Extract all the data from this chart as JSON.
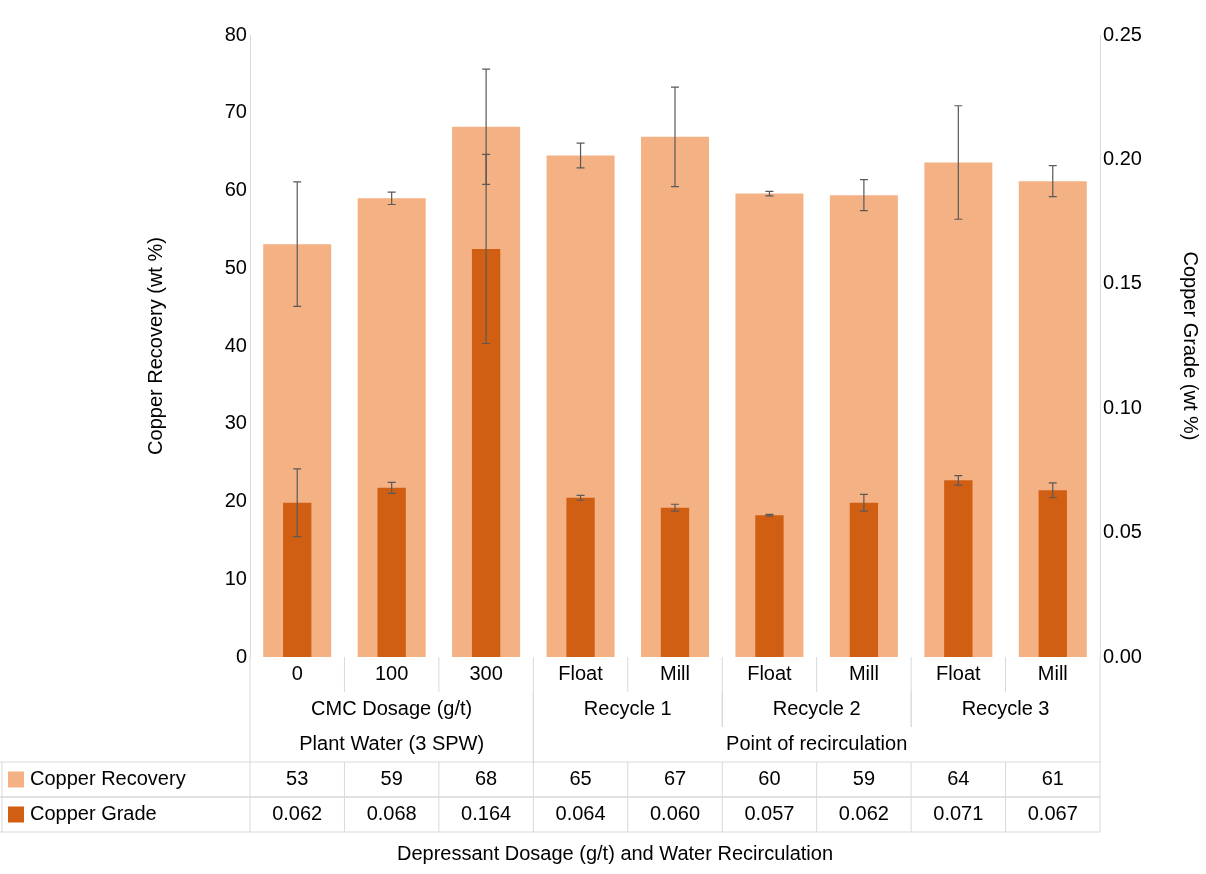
{
  "chart_data": {
    "type": "bar",
    "categories": [
      "0",
      "100",
      "300",
      "Float",
      "Mill",
      "Float",
      "Mill",
      "Float",
      "Mill"
    ],
    "series": [
      {
        "name": "Copper Recovery",
        "color": "#f4b183",
        "values": [
          53.1,
          59,
          68.2,
          64.5,
          66.9,
          59.6,
          59.4,
          63.6,
          61.2
        ],
        "errors": [
          8,
          0.8,
          7.4,
          1.6,
          6.4,
          0.3,
          2,
          7.3,
          2
        ],
        "value_labels": [
          "53",
          "59",
          "68",
          "65",
          "67",
          "60",
          "59",
          "64",
          "61"
        ]
      },
      {
        "name": "Copper Grade",
        "color": "#d05f14",
        "axis": "y2",
        "values": [
          0.062,
          0.068,
          0.164,
          0.064,
          0.06,
          0.057,
          0.062,
          0.071,
          0.067
        ],
        "errors": [
          0.0136,
          0.0022,
          0.038,
          0.001,
          0.0014,
          0.0003,
          0.0034,
          0.0019,
          0.003
        ],
        "value_labels": [
          "0.062",
          "0.068",
          "0.164",
          "0.064",
          "0.060",
          "0.057",
          "0.062",
          "0.071",
          "0.067"
        ]
      }
    ],
    "ylabel": "Copper Recovery (wt %)",
    "y2label": "Copper Grade (wt %)",
    "ylim": [
      0,
      80
    ],
    "yticks": [
      0,
      10,
      20,
      30,
      40,
      50,
      60,
      70,
      80
    ],
    "y2lim": [
      0,
      0.25
    ],
    "y2ticks": [
      {
        "value": 0,
        "label": "0.00"
      },
      {
        "value": 0.05,
        "label": "0.05"
      },
      {
        "value": 0.1,
        "label": "0.10"
      },
      {
        "value": 0.15,
        "label": "0.15"
      },
      {
        "value": 0.2,
        "label": "0.20"
      },
      {
        "value": 0.25,
        "label": "0.25"
      }
    ],
    "annotations": [
      "CMC Dosage (g/t)",
      "Recycle 1",
      "Recycle 2",
      "Recycle 3",
      "Plant Water (3 SPW)",
      "Point of recirculation",
      "Depressant Dosage (g/t) and Water Recirculation"
    ],
    "legend": "bottom",
    "grid": false
  }
}
